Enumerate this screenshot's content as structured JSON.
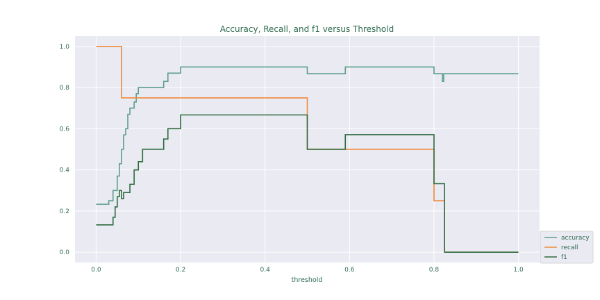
{
  "chart_data": {
    "type": "line",
    "title": "Accuracy, Recall, and f1 versus Threshold",
    "xlabel": "threshold",
    "ylabel": "",
    "xlim": [
      -0.05,
      1.05
    ],
    "ylim": [
      -0.05,
      1.05
    ],
    "xticks": [
      "0.0",
      "0.2",
      "0.4",
      "0.6",
      "0.8",
      "1.0"
    ],
    "yticks": [
      "0.0",
      "0.2",
      "0.4",
      "0.6",
      "0.8",
      "1.0"
    ],
    "grid": true,
    "legend_position": "lower-right-outside",
    "colors": {
      "background": "#eaeaf2",
      "grid": "#ffffff",
      "accuracy": "#5c9e8a",
      "recall": "#ef8a3c",
      "f1": "#2e6b3f"
    },
    "series": [
      {
        "name": "accuracy",
        "step": true,
        "x": [
          0.0,
          0.03,
          0.04,
          0.05,
          0.055,
          0.06,
          0.065,
          0.07,
          0.075,
          0.08,
          0.085,
          0.09,
          0.095,
          0.1,
          0.105,
          0.11,
          0.16,
          0.17,
          0.2,
          0.5,
          0.59,
          0.8,
          0.82,
          0.823,
          0.826,
          1.0
        ],
        "y": [
          0.233,
          0.25,
          0.3,
          0.37,
          0.43,
          0.5,
          0.57,
          0.6,
          0.67,
          0.7,
          0.7,
          0.73,
          0.77,
          0.8,
          0.8,
          0.8,
          0.83,
          0.87,
          0.9,
          0.867,
          0.9,
          0.867,
          0.83,
          0.867,
          0.867,
          0.867
        ]
      },
      {
        "name": "recall",
        "step": true,
        "x": [
          0.0,
          0.06,
          0.5,
          0.8,
          0.825,
          1.0
        ],
        "y": [
          1.0,
          0.75,
          0.5,
          0.25,
          0.0,
          0.0
        ]
      },
      {
        "name": "f1",
        "step": true,
        "x": [
          0.0,
          0.04,
          0.045,
          0.05,
          0.055,
          0.06,
          0.065,
          0.08,
          0.09,
          0.1,
          0.11,
          0.16,
          0.17,
          0.2,
          0.5,
          0.59,
          0.8,
          0.825,
          1.0
        ],
        "y": [
          0.133,
          0.17,
          0.22,
          0.27,
          0.3,
          0.26,
          0.29,
          0.33,
          0.4,
          0.44,
          0.5,
          0.55,
          0.6,
          0.667,
          0.5,
          0.571,
          0.333,
          0.0,
          0.0
        ]
      }
    ]
  }
}
